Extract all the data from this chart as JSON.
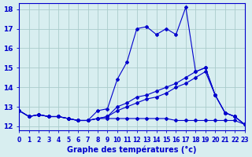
{
  "title": "",
  "xlabel": "Graphe des températures (°c)",
  "ylabel": "",
  "bg_color": "#d8eef0",
  "grid_color": "#aacccc",
  "line_color": "#0000cc",
  "xlim": [
    0,
    23
  ],
  "ylim": [
    11.8,
    18.3
  ],
  "yticks": [
    12,
    13,
    14,
    15,
    16,
    17,
    18
  ],
  "xticks": [
    0,
    1,
    2,
    3,
    4,
    5,
    6,
    7,
    8,
    9,
    10,
    11,
    12,
    13,
    14,
    15,
    16,
    17,
    18,
    19,
    20,
    21,
    22,
    23
  ],
  "line1_x": [
    0,
    1,
    2,
    3,
    4,
    5,
    6,
    7,
    8,
    9,
    10,
    11,
    12,
    13,
    14,
    15,
    16,
    17,
    18,
    19,
    20,
    21,
    22,
    23
  ],
  "line1_y": [
    12.8,
    12.5,
    12.6,
    12.5,
    12.5,
    12.4,
    12.3,
    12.3,
    12.8,
    12.9,
    14.4,
    15.3,
    17.0,
    17.1,
    16.7,
    17.0,
    16.7,
    18.1,
    14.8,
    15.0,
    13.6,
    12.7,
    12.5,
    12.1
  ],
  "line2_x": [
    0,
    1,
    2,
    3,
    4,
    5,
    6,
    7,
    8,
    9,
    10,
    11,
    12,
    13,
    14,
    15,
    16,
    17,
    18,
    19,
    20,
    21,
    22,
    23
  ],
  "line2_y": [
    12.8,
    12.5,
    12.6,
    12.5,
    12.5,
    12.4,
    12.3,
    12.3,
    12.4,
    12.4,
    12.4,
    12.4,
    12.4,
    12.4,
    12.4,
    12.4,
    12.3,
    12.3,
    12.3,
    12.3,
    12.3,
    12.3,
    12.3,
    12.1
  ],
  "line3_x": [
    0,
    1,
    2,
    3,
    4,
    5,
    6,
    7,
    8,
    9,
    10,
    11,
    12,
    13,
    14,
    15,
    16,
    17,
    18,
    19,
    20,
    21,
    22,
    23
  ],
  "line3_y": [
    12.8,
    12.5,
    12.6,
    12.5,
    12.5,
    12.4,
    12.3,
    12.3,
    12.4,
    12.5,
    13.0,
    13.2,
    13.5,
    13.6,
    13.8,
    14.0,
    14.2,
    14.5,
    14.8,
    15.0,
    13.6,
    12.7,
    12.5,
    12.1
  ],
  "line4_x": [
    0,
    1,
    2,
    3,
    4,
    5,
    6,
    7,
    8,
    9,
    10,
    11,
    12,
    13,
    14,
    15,
    16,
    17,
    18,
    19,
    20,
    21,
    22,
    23
  ],
  "line4_y": [
    12.8,
    12.5,
    12.6,
    12.5,
    12.5,
    12.4,
    12.3,
    12.3,
    12.4,
    12.5,
    12.8,
    13.0,
    13.2,
    13.4,
    13.5,
    13.7,
    14.0,
    14.2,
    14.5,
    14.8,
    13.6,
    12.7,
    12.5,
    12.1
  ]
}
